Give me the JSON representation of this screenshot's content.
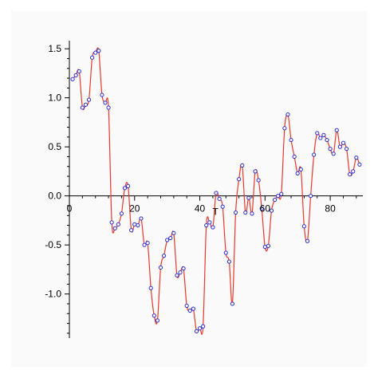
{
  "chart_data": {
    "type": "line",
    "title": "",
    "xlabel": "",
    "ylabel": "",
    "xlim": [
      0,
      90
    ],
    "ylim": [
      -1.45,
      1.55
    ],
    "grid": false,
    "axis_annotation": "T",
    "x_ticks": [
      {
        "value": 0,
        "label": "0"
      },
      {
        "value": 20,
        "label": "20"
      },
      {
        "value": 40,
        "label": "40"
      },
      {
        "value": 60,
        "label": "60"
      },
      {
        "value": 80,
        "label": "80"
      }
    ],
    "y_ticks": [
      {
        "value": 1.5,
        "label": "1.5"
      },
      {
        "value": 1.0,
        "label": "1.0"
      },
      {
        "value": 0.5,
        "label": "0.5"
      },
      {
        "value": 0.0,
        "label": "0.0"
      },
      {
        "value": -0.5,
        "label": "-0.5"
      },
      {
        "value": -1.0,
        "label": "-1.0"
      }
    ],
    "colors": {
      "line": "#e8382a",
      "marker": "#2a2ad4",
      "axis": "#000000"
    },
    "series": [
      {
        "x": [
          1,
          2,
          3,
          4,
          5,
          6,
          7,
          8,
          9,
          10,
          11,
          12,
          13,
          14,
          15,
          16,
          17,
          18,
          19,
          20,
          21,
          22,
          23,
          24,
          25,
          26,
          27,
          28,
          29,
          30,
          31,
          32,
          33,
          34,
          35,
          36,
          37,
          38,
          39,
          40,
          41,
          42,
          43,
          44,
          45,
          46,
          47,
          48,
          49,
          50,
          51,
          52,
          53,
          54,
          55,
          56,
          57,
          58,
          59,
          60,
          61,
          62,
          63,
          64,
          65,
          66,
          67,
          68,
          69,
          70,
          71,
          72,
          73,
          74,
          75,
          76,
          77,
          78,
          79,
          80,
          81,
          82,
          83,
          84,
          85,
          86,
          87,
          88,
          89
        ],
        "values": [
          1.19,
          1.23,
          1.27,
          0.9,
          0.93,
          0.98,
          1.41,
          1.46,
          1.48,
          1.03,
          0.95,
          0.9,
          -0.27,
          -0.33,
          -0.29,
          -0.18,
          0.08,
          0.1,
          -0.35,
          -0.29,
          -0.3,
          -0.23,
          -0.5,
          -0.48,
          -0.94,
          -1.22,
          -1.27,
          -0.73,
          -0.61,
          -0.45,
          -0.43,
          -0.38,
          -0.81,
          -0.78,
          -0.74,
          -1.12,
          -1.17,
          -1.15,
          -1.38,
          -1.35,
          -1.33,
          -0.3,
          -0.27,
          -0.32,
          0.03,
          -0.03,
          -0.11,
          -0.58,
          -0.67,
          -1.1,
          -0.17,
          0.17,
          0.31,
          -0.17,
          -0.02,
          -0.18,
          0.25,
          0.16,
          -0.13,
          -0.52,
          -0.51,
          -0.15,
          -0.04,
          0.0,
          0.02,
          0.69,
          0.83,
          0.57,
          0.4,
          0.23,
          0.27,
          -0.31,
          -0.46,
          0.0,
          0.42,
          0.64,
          0.59,
          0.62,
          0.57,
          0.48,
          0.43,
          0.67,
          0.5,
          0.54,
          0.48,
          0.22,
          0.25,
          0.39,
          0.32
        ]
      }
    ]
  }
}
